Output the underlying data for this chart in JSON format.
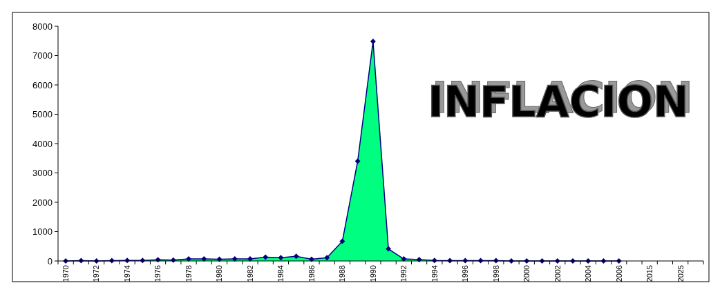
{
  "chart_data": {
    "type": "area",
    "title": "INFLACION",
    "categories": [
      "1970",
      null,
      "1972",
      null,
      "1974",
      null,
      "1976",
      null,
      "1978",
      null,
      "1980",
      null,
      "1982",
      null,
      "1984",
      null,
      "1986",
      null,
      "1988",
      null,
      "1990",
      null,
      "1992",
      null,
      "1994",
      null,
      "1996",
      null,
      "1998",
      null,
      "2000",
      null,
      "2002",
      null,
      "2004",
      null,
      "2006",
      null,
      "2015",
      null,
      "2025",
      null
    ],
    "series": [
      {
        "color": "#00ff80",
        "values": [
          0,
          10,
          0,
          10,
          20,
          20,
          40,
          30,
          70,
          70,
          60,
          70,
          70,
          130,
          110,
          160,
          60,
          110,
          670,
          3400,
          7480,
          410,
          70,
          50,
          20,
          10,
          10,
          10,
          10,
          0,
          0,
          0,
          0,
          0,
          0,
          0,
          0,
          null,
          null,
          null,
          null,
          null
        ]
      }
    ],
    "ylim": [
      0,
      8000
    ],
    "yticks": [
      0,
      1000,
      2000,
      3000,
      4000,
      5000,
      6000,
      7000,
      8000
    ],
    "grid": false,
    "marker": "diamond"
  }
}
